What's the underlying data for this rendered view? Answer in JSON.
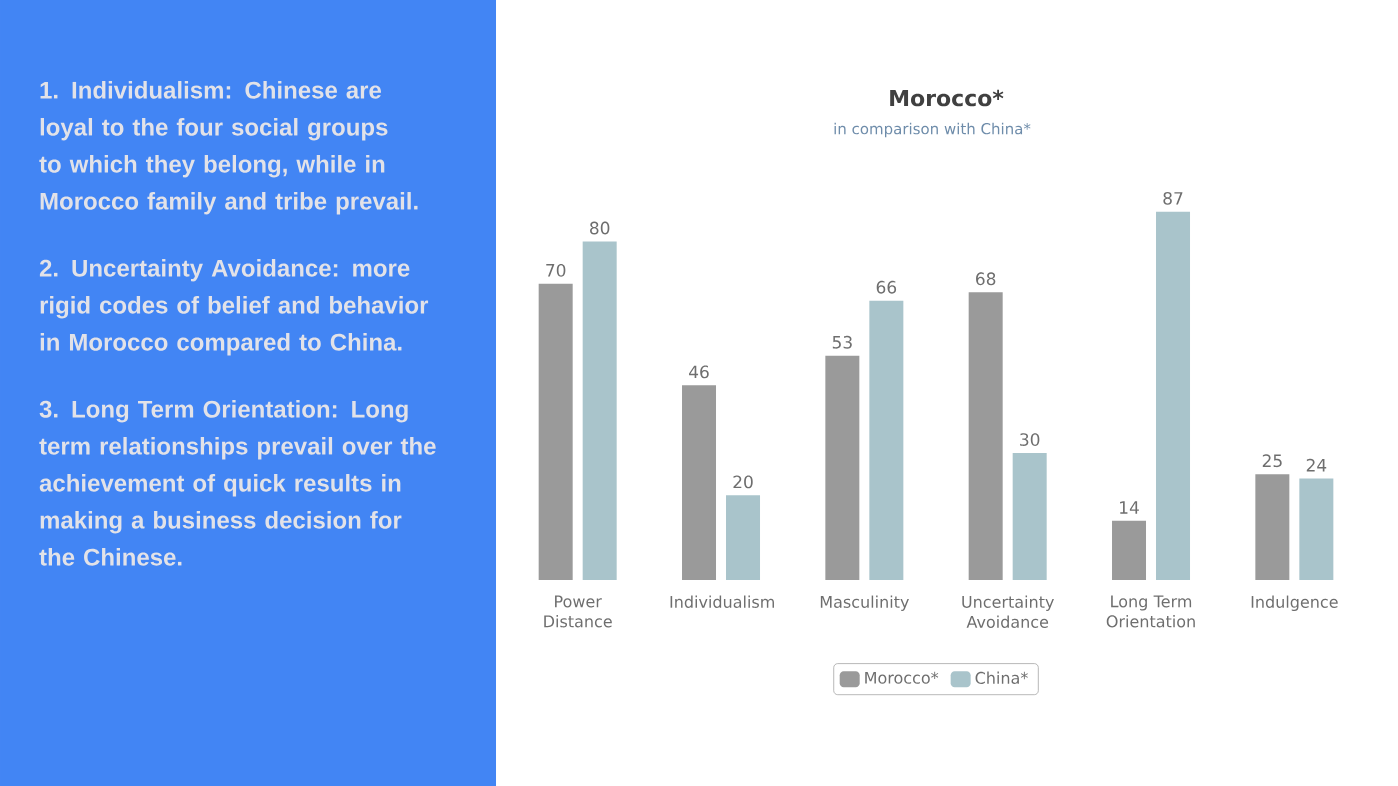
{
  "chart_data": {
    "type": "bar",
    "title": "Morocco*",
    "subtitle": "in comparison with China*",
    "categories": [
      "Power Distance",
      "Individualism",
      "Masculinity",
      "Uncertainty Avoidance",
      "Long Term Orientation",
      "Indulgence"
    ],
    "series": [
      {
        "name": "Morocco*",
        "color": "#9a9a9a",
        "values": [
          70,
          46,
          53,
          68,
          14,
          25
        ]
      },
      {
        "name": "China*",
        "color": "#a9c4cb",
        "values": [
          80,
          20,
          66,
          30,
          87,
          24
        ]
      }
    ],
    "tick_labels": "x",
    "data_labels": true,
    "legend": "bottom",
    "grid": false,
    "annotations": [
      "1. Individualism: Chinese are loyal to the four social groups to which they belong, while in Morocco family and tribe prevail.",
      "2. Uncertainty Avoidance: more rigid codes of belief and behavior in Morocco compared to China.",
      "3. Long Term Orientation: Long term relationships prevail over the achievement of quick results in making a business decision for the Chinese."
    ]
  }
}
